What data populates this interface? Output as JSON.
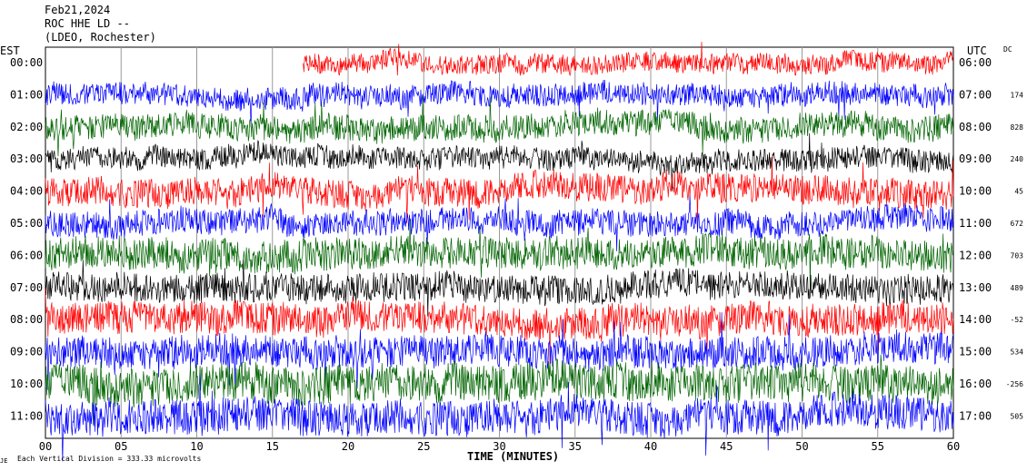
{
  "header": {
    "date": "Feb21,2024",
    "station": "ROC HHE LD --",
    "network": "(LDEO, Rochester)"
  },
  "left_axis_label": "EST",
  "right_axis_label": "UTC",
  "dc_label": "DC",
  "x_axis_title": "TIME (MINUTES)",
  "footer": {
    "mark": "JE",
    "text": "Each Vertical Division =  333.33 microvolts"
  },
  "trace_colors": [
    "#ff0000",
    "#0000ff",
    "#006400",
    "#000000"
  ],
  "chart_data": {
    "type": "line",
    "title": "Feb21,2024",
    "xlabel": "TIME (MINUTES)",
    "xlim": [
      0,
      60
    ],
    "x_ticks": [
      "00",
      "05",
      "10",
      "15",
      "20",
      "25",
      "30",
      "35",
      "40",
      "45",
      "50",
      "55",
      "60"
    ],
    "rows": [
      {
        "est": "00:00",
        "utc": "06:00",
        "dc": "",
        "color": "#ff0000",
        "start_minute": 17,
        "amplitude": 0.3
      },
      {
        "est": "01:00",
        "utc": "07:00",
        "dc": "174",
        "color": "#0000ff",
        "start_minute": 0,
        "amplitude": 0.35
      },
      {
        "est": "02:00",
        "utc": "08:00",
        "dc": "828",
        "color": "#006400",
        "start_minute": 0,
        "amplitude": 0.4
      },
      {
        "est": "03:00",
        "utc": "09:00",
        "dc": "240",
        "color": "#000000",
        "start_minute": 0,
        "amplitude": 0.35
      },
      {
        "est": "04:00",
        "utc": "10:00",
        "dc": "45",
        "color": "#ff0000",
        "start_minute": 0,
        "amplitude": 0.45
      },
      {
        "est": "05:00",
        "utc": "11:00",
        "dc": "672",
        "color": "#0000ff",
        "start_minute": 0,
        "amplitude": 0.4
      },
      {
        "est": "06:00",
        "utc": "12:00",
        "dc": "703",
        "color": "#006400",
        "start_minute": 0,
        "amplitude": 0.5
      },
      {
        "est": "07:00",
        "utc": "13:00",
        "dc": "489",
        "color": "#000000",
        "start_minute": 0,
        "amplitude": 0.45
      },
      {
        "est": "08:00",
        "utc": "14:00",
        "dc": "-52",
        "color": "#ff0000",
        "start_minute": 0,
        "amplitude": 0.5
      },
      {
        "est": "09:00",
        "utc": "15:00",
        "dc": "534",
        "color": "#0000ff",
        "start_minute": 0,
        "amplitude": 0.5
      },
      {
        "est": "10:00",
        "utc": "16:00",
        "dc": "-256",
        "color": "#006400",
        "start_minute": 0,
        "amplitude": 0.6
      },
      {
        "est": "11:00",
        "utc": "17:00",
        "dc": "505",
        "color": "#0000ff",
        "start_minute": 0,
        "amplitude": 0.55
      }
    ],
    "grid": true
  }
}
